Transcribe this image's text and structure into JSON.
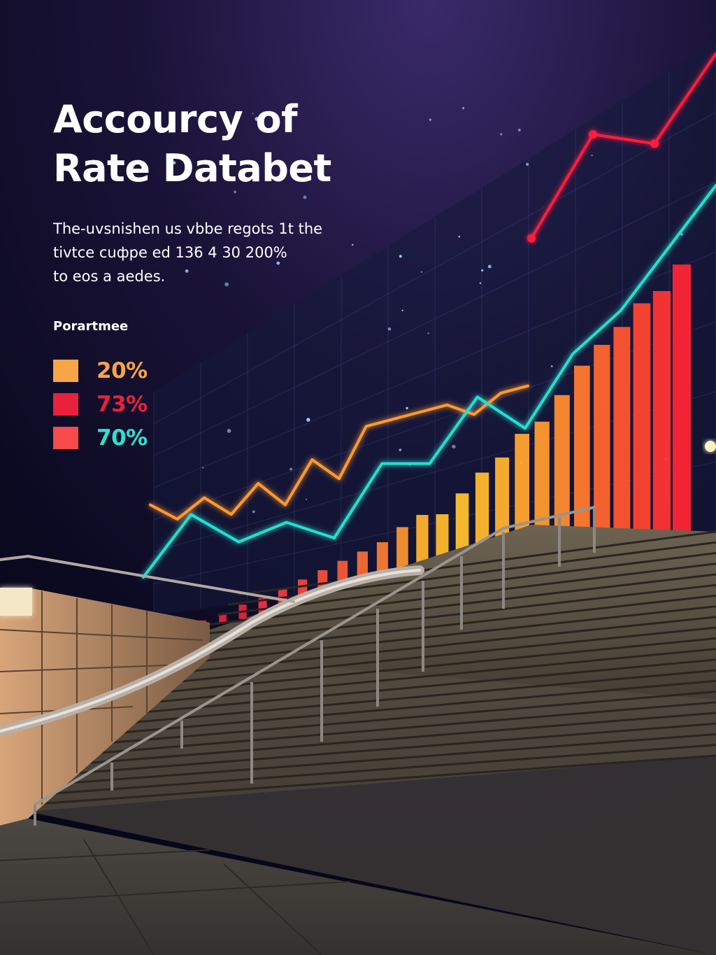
{
  "title_lines": [
    "Accourcy of",
    "Rate Databet"
  ],
  "subtitle_lines": [
    "The-uvsnishen us vbbe regots 1t the",
    "tivtce cuфpe ed 136  4 30 200%",
    "to eos a aedes."
  ],
  "legend_title": "Porartmee",
  "legend": [
    {
      "value": "20%",
      "swatch_color": "#f7a545",
      "text_color": "#f7a545"
    },
    {
      "value": "73%",
      "swatch_color": "#e8213c",
      "text_color": "#e8213c"
    },
    {
      "value": "70%",
      "swatch_color": "#f74a4a",
      "text_color": "#2ee0d0"
    }
  ],
  "chart_data": {
    "type": "line",
    "title": "",
    "xlabel": "",
    "ylabel": "",
    "grid": true,
    "series": [
      {
        "color": "#ff1f3d",
        "points": [
          [
            0,
            0.18
          ],
          [
            1,
            0.63
          ],
          [
            2,
            0.59
          ],
          [
            3,
            0.98
          ]
        ]
      },
      {
        "color": "#ff9a2e",
        "points": [
          [
            0,
            0.06
          ],
          [
            1,
            0.0
          ],
          [
            2,
            0.09
          ],
          [
            3,
            0.02
          ],
          [
            4,
            0.15
          ],
          [
            5,
            0.06
          ],
          [
            6,
            0.25
          ],
          [
            7,
            0.17
          ],
          [
            8,
            0.39
          ],
          [
            9,
            0.42
          ],
          [
            10,
            0.45
          ],
          [
            11,
            0.48
          ],
          [
            12,
            0.44
          ],
          [
            13,
            0.53
          ],
          [
            14,
            0.56
          ]
        ]
      },
      {
        "color": "#23e0cf",
        "points": [
          [
            0,
            0.0
          ],
          [
            1,
            0.16
          ],
          [
            2,
            0.09
          ],
          [
            3,
            0.14
          ],
          [
            4,
            0.1
          ],
          [
            5,
            0.29
          ],
          [
            6,
            0.29
          ],
          [
            7,
            0.46
          ],
          [
            8,
            0.38
          ],
          [
            9,
            0.57
          ],
          [
            10,
            0.68
          ],
          [
            11,
            0.84
          ],
          [
            12,
            1.0
          ]
        ]
      }
    ],
    "bars": {
      "values": [
        0.02,
        0.03,
        0.05,
        0.06,
        0.08,
        0.1,
        0.12,
        0.14,
        0.16,
        0.18,
        0.22,
        0.25,
        0.24,
        0.3,
        0.36,
        0.4,
        0.47,
        0.5,
        0.58,
        0.67,
        0.73,
        0.78,
        0.85,
        0.88,
        0.96
      ],
      "colors": [
        "#e8213c",
        "#e8213c",
        "#e8213c",
        "#ee3346",
        "#ef3a40",
        "#f0443c",
        "#f2503a",
        "#f35a38",
        "#f66a36",
        "#f87a34",
        "#fa9230",
        "#ffb12e",
        "#ffba2e",
        "#ffc12e",
        "#ffba2e",
        "#ffb22e",
        "#ffa52e",
        "#ff9b2e",
        "#ff8c2e",
        "#ff7a2e",
        "#ff662e",
        "#ff5530",
        "#ff4432",
        "#ff3433",
        "#ff2436"
      ]
    }
  }
}
